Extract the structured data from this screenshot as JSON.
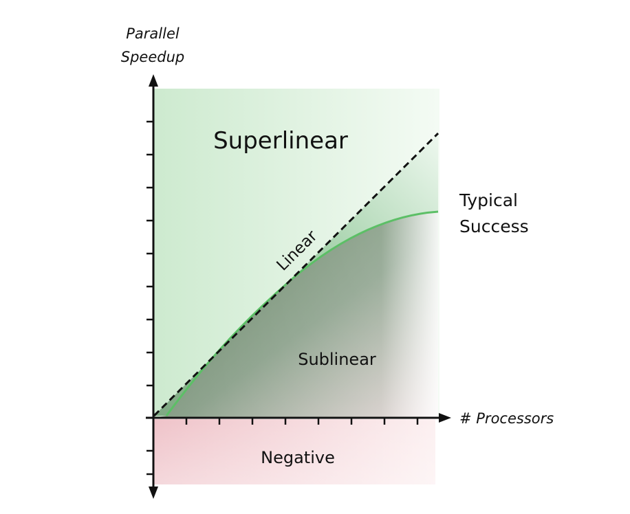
{
  "y_axis": {
    "label_line1": "Parallel",
    "label_line2": "Speedup"
  },
  "x_axis": {
    "label": "# Processors"
  },
  "regions": {
    "superlinear": "Superlinear",
    "sublinear": "Sublinear",
    "negative": "Negative"
  },
  "lines": {
    "linear": "Linear",
    "typical_line1": "Typical",
    "typical_line2": "Success"
  },
  "colors": {
    "superlinear_fill": "#d6eedb",
    "sublinear_fill": "#6f8f6c",
    "negative_fill": "#f3c9cf",
    "typical_curve": "#5cbf66",
    "linear_dash": "#111111"
  }
}
